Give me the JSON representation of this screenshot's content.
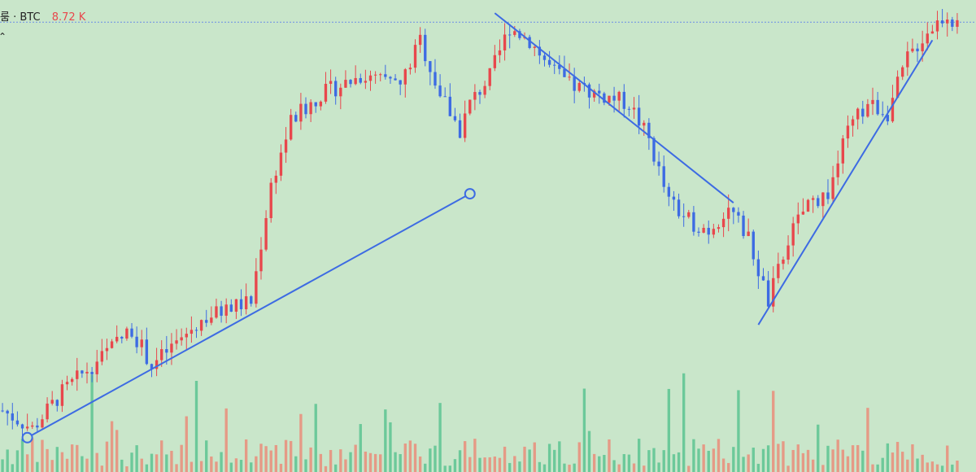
{
  "legend": {
    "label": "룸 · BTC",
    "value": "8.72 K"
  },
  "colors": {
    "background": "#c9e6ca",
    "up": "#e8474c",
    "down": "#3d6be3",
    "volume_up": "#e59a86",
    "volume_down": "#6cc99a",
    "drawing": "#3d6be3",
    "price_line": "#6c8ee6"
  },
  "chart_data": {
    "type": "candlestick",
    "price_range": [
      0,
      100
    ],
    "volume_range": [
      0,
      100
    ],
    "current_price_level": 96,
    "candles": [],
    "drawings": [
      {
        "type": "trendline",
        "from": {
          "index": 5,
          "price": 4
        },
        "to": {
          "index": 94,
          "price": 58
        }
      },
      {
        "type": "trendline",
        "from": {
          "index": 99,
          "price": 98
        },
        "to": {
          "index": 147,
          "price": 56
        }
      },
      {
        "type": "trendline",
        "from": {
          "index": 152,
          "price": 29
        },
        "to": {
          "index": 187,
          "price": 92
        }
      }
    ],
    "control_points": [
      {
        "index": 5,
        "price": 4
      },
      {
        "index": 94,
        "price": 58
      }
    ]
  }
}
